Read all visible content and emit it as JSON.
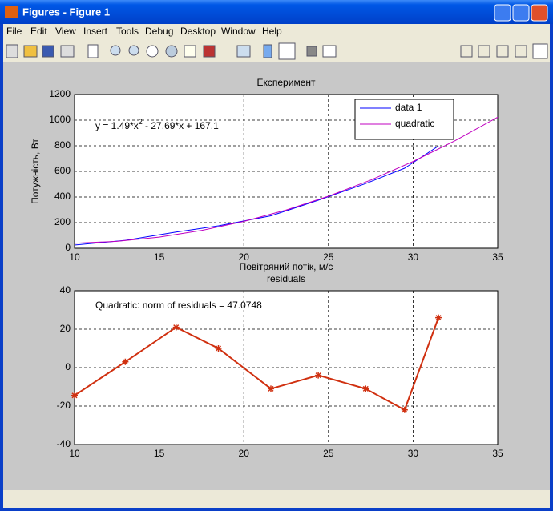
{
  "window": {
    "title": "Figures - Figure 1"
  },
  "menu": [
    "File",
    "Edit",
    "View",
    "Insert",
    "Tools",
    "Debug",
    "Desktop",
    "Window",
    "Help"
  ],
  "chart_data": [
    {
      "type": "line",
      "title": "Експеримент",
      "xlabel": "Повітряний потік, м/с",
      "ylabel": "Потужність, Вт",
      "xlim": [
        10,
        35
      ],
      "ylim": [
        0,
        1200
      ],
      "xticks": [
        10,
        15,
        20,
        25,
        30,
        35
      ],
      "yticks": [
        0,
        200,
        400,
        600,
        800,
        1000,
        1200
      ],
      "grid": true,
      "legend": "upper right",
      "equation": [
        "y = 1.49*x",
        "2",
        " - 27.69*x + 167.1"
      ],
      "series": [
        {
          "name": "data 1",
          "color": "#0000ff",
          "x": [
            10,
            13,
            16,
            18.5,
            21.6,
            24.4,
            27.2,
            29.5,
            31.5
          ],
          "values": [
            24.7,
            61.9,
            126.5,
            174.8,
            253,
            374.6,
            505,
            625,
            799
          ]
        },
        {
          "name": "quadratic",
          "color": "#c000c0",
          "x": [
            10,
            12.5,
            15,
            17.5,
            20,
            22.5,
            25,
            27.5,
            30,
            32.5,
            35
          ],
          "values": [
            39.2,
            53.8,
            87,
            138.8,
            209.3,
            298.4,
            406.1,
            532.4,
            677.4,
            841,
            1023.2
          ]
        }
      ]
    },
    {
      "type": "line",
      "title": "residuals",
      "xlim": [
        10,
        35
      ],
      "ylim": [
        -40,
        40
      ],
      "xticks": [
        10,
        15,
        20,
        25,
        30,
        35
      ],
      "yticks": [
        -40,
        -20,
        0,
        20,
        40
      ],
      "grid": true,
      "annotation": "Quadratic: norm of residuals = 47.0748",
      "series": [
        {
          "color": "#d03010",
          "marker": "star",
          "x": [
            10,
            13,
            16,
            18.5,
            21.6,
            24.4,
            27.2,
            29.5,
            31.5
          ],
          "values": [
            -14.5,
            3,
            21,
            10,
            -11,
            -4,
            -11,
            -22,
            26
          ]
        }
      ]
    }
  ]
}
